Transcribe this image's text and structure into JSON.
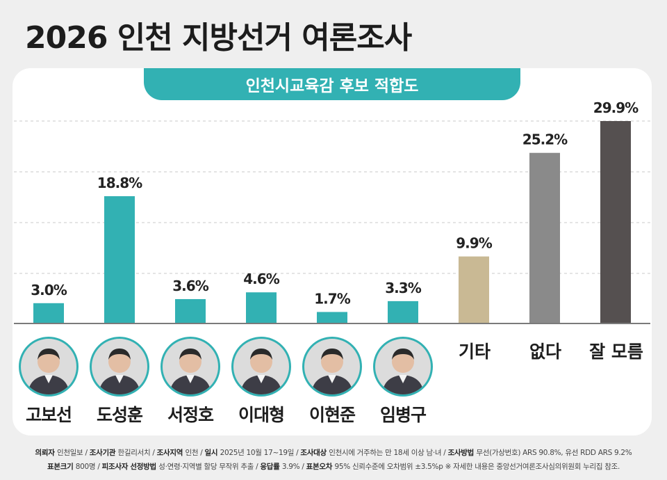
{
  "page": {
    "title": "2026 인천 지방선거 여론조사",
    "chart_title": "인천시교육감 후보 적합도"
  },
  "colors": {
    "accent": "#32b1b3",
    "other": "#c9b994",
    "none": "#8a8a8a",
    "unsure": "#555050"
  },
  "chart_data": {
    "type": "bar",
    "title": "인천시교육감 후보 적합도",
    "categories": [
      "고보선",
      "도성훈",
      "서정호",
      "이대형",
      "이현준",
      "임병구",
      "기타",
      "없다",
      "잘 모름"
    ],
    "values": [
      3.0,
      18.8,
      3.6,
      4.6,
      1.7,
      3.3,
      9.9,
      25.2,
      29.9
    ],
    "value_labels": [
      "3.0%",
      "18.8%",
      "3.6%",
      "4.6%",
      "1.7%",
      "3.3%",
      "9.9%",
      "25.2%",
      "29.9%"
    ],
    "bar_colors": [
      "#32b1b3",
      "#32b1b3",
      "#32b1b3",
      "#32b1b3",
      "#32b1b3",
      "#32b1b3",
      "#c9b994",
      "#8a8a8a",
      "#555050"
    ],
    "ylim": [
      0,
      30
    ],
    "grid": true,
    "legend": "none"
  },
  "candidates": [
    {
      "name": "고보선"
    },
    {
      "name": "도성훈"
    },
    {
      "name": "서정호"
    },
    {
      "name": "이대형"
    },
    {
      "name": "이현준"
    },
    {
      "name": "임병구"
    }
  ],
  "other_labels": [
    "기타",
    "없다",
    "잘 모름"
  ],
  "footnote": {
    "line1": [
      {
        "k": "의뢰자",
        "v": "인천일보"
      },
      {
        "k": "조사기관",
        "v": "한길리서치"
      },
      {
        "k": "조사지역",
        "v": "인천"
      },
      {
        "k": "일시",
        "v": "2025년 10월 17~19일"
      },
      {
        "k": "조사대상",
        "v": "인천시에 거주하는 만 18세 이상 남·녀"
      },
      {
        "k": "조사방법",
        "v": "무선(가상번호) ARS 90.8%, 유선 RDD ARS 9.2%"
      }
    ],
    "line2": [
      {
        "k": "표본크기",
        "v": "800명"
      },
      {
        "k": "피조사자 선정방법",
        "v": "성·연령·지역별 할당 무작위 추출"
      },
      {
        "k": "응답률",
        "v": "3.9%"
      },
      {
        "k": "표본오차",
        "v": "95% 신뢰수준에 오차범위 ±3.5%p"
      }
    ],
    "note": "※ 자세한 내용은 중앙선거여론조사심의위원회 누리집 참조."
  }
}
